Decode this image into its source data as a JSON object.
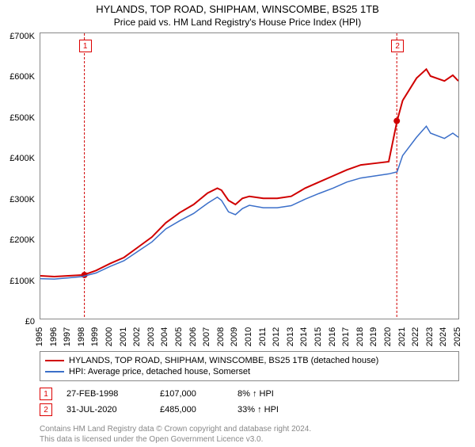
{
  "title": "HYLANDS, TOP ROAD, SHIPHAM, WINSCOMBE, BS25 1TB",
  "subtitle": "Price paid vs. HM Land Registry's House Price Index (HPI)",
  "chart": {
    "type": "line",
    "background_color": "#ffffff",
    "border_color": "#888888",
    "title_fontsize": 13,
    "subtitle_fontsize": 12,
    "label_fontsize": 11,
    "ylim": [
      0,
      700000
    ],
    "ytick_step": 100000,
    "y_axis": [
      {
        "v": 0,
        "label": "£0"
      },
      {
        "v": 100000,
        "label": "£100K"
      },
      {
        "v": 200000,
        "label": "£200K"
      },
      {
        "v": 300000,
        "label": "£300K"
      },
      {
        "v": 400000,
        "label": "£400K"
      },
      {
        "v": 500000,
        "label": "£500K"
      },
      {
        "v": 600000,
        "label": "£600K"
      },
      {
        "v": 700000,
        "label": "£700K"
      }
    ],
    "xlim": [
      1995,
      2025
    ],
    "x_axis": [
      1995,
      1996,
      1997,
      1998,
      1999,
      2000,
      2001,
      2002,
      2003,
      2004,
      2005,
      2006,
      2007,
      2008,
      2009,
      2010,
      2011,
      2012,
      2013,
      2014,
      2015,
      2016,
      2017,
      2018,
      2019,
      2020,
      2021,
      2022,
      2023,
      2024,
      2025
    ],
    "series": [
      {
        "name": "HYLANDS, TOP ROAD, SHIPHAM, WINSCOMBE, BS25 1TB (detached house)",
        "color": "#d00000",
        "line_width": 2,
        "data": [
          [
            1995,
            105000
          ],
          [
            1996,
            103000
          ],
          [
            1997,
            105000
          ],
          [
            1998,
            107000
          ],
          [
            1998.5,
            112000
          ],
          [
            1999,
            118000
          ],
          [
            2000,
            135000
          ],
          [
            2001,
            150000
          ],
          [
            2002,
            175000
          ],
          [
            2003,
            200000
          ],
          [
            2004,
            235000
          ],
          [
            2005,
            260000
          ],
          [
            2006,
            280000
          ],
          [
            2007,
            308000
          ],
          [
            2007.7,
            320000
          ],
          [
            2008,
            315000
          ],
          [
            2008.5,
            290000
          ],
          [
            2009,
            280000
          ],
          [
            2009.5,
            295000
          ],
          [
            2010,
            300000
          ],
          [
            2011,
            295000
          ],
          [
            2012,
            295000
          ],
          [
            2013,
            300000
          ],
          [
            2014,
            320000
          ],
          [
            2015,
            335000
          ],
          [
            2016,
            350000
          ],
          [
            2017,
            365000
          ],
          [
            2018,
            377000
          ],
          [
            2019,
            381000
          ],
          [
            2020,
            385000
          ],
          [
            2020.6,
            485000
          ],
          [
            2021,
            535000
          ],
          [
            2022,
            590000
          ],
          [
            2022.7,
            612000
          ],
          [
            2023,
            595000
          ],
          [
            2024,
            583000
          ],
          [
            2024.6,
            597000
          ],
          [
            2025,
            583000
          ]
        ]
      },
      {
        "name": "HPI: Average price, detached house, Somerset",
        "color": "#3b6fc9",
        "line_width": 1.5,
        "data": [
          [
            1995,
            98000
          ],
          [
            1996,
            97000
          ],
          [
            1997,
            100000
          ],
          [
            1998,
            103000
          ],
          [
            1999,
            112000
          ],
          [
            2000,
            128000
          ],
          [
            2001,
            142000
          ],
          [
            2002,
            165000
          ],
          [
            2003,
            188000
          ],
          [
            2004,
            220000
          ],
          [
            2005,
            240000
          ],
          [
            2006,
            258000
          ],
          [
            2007,
            283000
          ],
          [
            2007.7,
            298000
          ],
          [
            2008,
            290000
          ],
          [
            2008.5,
            262000
          ],
          [
            2009,
            255000
          ],
          [
            2009.5,
            270000
          ],
          [
            2010,
            278000
          ],
          [
            2011,
            272000
          ],
          [
            2012,
            272000
          ],
          [
            2013,
            277000
          ],
          [
            2014,
            293000
          ],
          [
            2015,
            307000
          ],
          [
            2016,
            320000
          ],
          [
            2017,
            335000
          ],
          [
            2018,
            345000
          ],
          [
            2019,
            350000
          ],
          [
            2020,
            355000
          ],
          [
            2020.6,
            360000
          ],
          [
            2021,
            400000
          ],
          [
            2022,
            445000
          ],
          [
            2022.7,
            472000
          ],
          [
            2023,
            455000
          ],
          [
            2024,
            442000
          ],
          [
            2024.6,
            455000
          ],
          [
            2025,
            445000
          ]
        ]
      }
    ],
    "markers": [
      {
        "id": "1",
        "x": 1998.16,
        "y": 107000,
        "vline_top": 700000,
        "box_offset_y": -30
      },
      {
        "id": "2",
        "x": 2020.58,
        "y": 485000,
        "vline_top": 700000,
        "box_offset_y": -30
      }
    ],
    "vline_color": "#d00000",
    "vline_dash": "3,2",
    "marker_fill": "#d00000",
    "marker_radius": 4
  },
  "legend": [
    {
      "color": "#d00000",
      "label": "HYLANDS, TOP ROAD, SHIPHAM, WINSCOMBE, BS25 1TB (detached house)"
    },
    {
      "color": "#3b6fc9",
      "label": "HPI: Average price, detached house, Somerset"
    }
  ],
  "annotations": [
    {
      "id": "1",
      "date": "27-FEB-1998",
      "price": "£107,000",
      "pct": "8% ↑ HPI"
    },
    {
      "id": "2",
      "date": "31-JUL-2020",
      "price": "£485,000",
      "pct": "33% ↑ HPI"
    }
  ],
  "footer_lines": [
    "Contains HM Land Registry data © Crown copyright and database right 2024.",
    "This data is licensed under the Open Government Licence v3.0."
  ]
}
